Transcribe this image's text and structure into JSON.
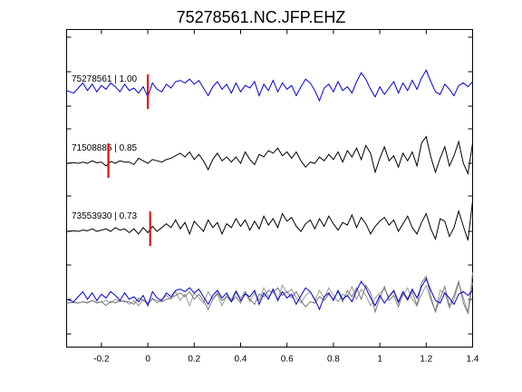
{
  "chart_data": {
    "type": "line",
    "title": "75278561.NC.JFP.EHZ",
    "xlabel": "",
    "ylabel": "",
    "xlim": [
      -0.35,
      1.4
    ],
    "x_ticks": [
      -0.2,
      0,
      0.2,
      0.4,
      0.6,
      0.8,
      1,
      1.2,
      1.4
    ],
    "x_tick_labels": [
      "-0.2",
      "0",
      "0.2",
      "0.4",
      "0.6",
      "0.8",
      "1",
      "1.2",
      "1.4"
    ],
    "grid": false,
    "legend": "none",
    "pick_color": "#e00000",
    "traces": [
      {
        "label": "75278561 | 1.00",
        "color": "#0000cc",
        "pick_time": 0.0,
        "x": [
          -0.35,
          -0.32,
          -0.3,
          -0.28,
          -0.26,
          -0.24,
          -0.22,
          -0.2,
          -0.18,
          -0.16,
          -0.14,
          -0.12,
          -0.1,
          -0.08,
          -0.06,
          -0.04,
          -0.02,
          0.0,
          0.02,
          0.04,
          0.06,
          0.08,
          0.1,
          0.12,
          0.14,
          0.16,
          0.18,
          0.2,
          0.22,
          0.24,
          0.26,
          0.28,
          0.3,
          0.32,
          0.34,
          0.36,
          0.38,
          0.4,
          0.42,
          0.44,
          0.46,
          0.48,
          0.5,
          0.52,
          0.54,
          0.56,
          0.58,
          0.6,
          0.62,
          0.64,
          0.66,
          0.68,
          0.7,
          0.72,
          0.74,
          0.76,
          0.78,
          0.8,
          0.82,
          0.84,
          0.86,
          0.88,
          0.9,
          0.92,
          0.94,
          0.96,
          0.98,
          1.0,
          1.02,
          1.04,
          1.06,
          1.08,
          1.1,
          1.12,
          1.14,
          1.16,
          1.18,
          1.2,
          1.22,
          1.24,
          1.26,
          1.28,
          1.3,
          1.32,
          1.34,
          1.36,
          1.38,
          1.4
        ],
        "y": [
          0.3,
          0.1,
          0.5,
          0.9,
          0.3,
          0.8,
          0.2,
          0.7,
          0.4,
          0.9,
          0.6,
          0.2,
          0.8,
          0.3,
          0.5,
          0.1,
          0.6,
          -0.2,
          0.9,
          0.4,
          0.2,
          0.8,
          0.5,
          1.0,
          1.1,
          0.9,
          1.2,
          0.8,
          1.1,
          0.5,
          -0.1,
          0.6,
          1.0,
          0.4,
          0.8,
          0.1,
          0.9,
          0.2,
          0.7,
          0.5,
          1.0,
          -0.1,
          0.8,
          0.3,
          1.1,
          0.2,
          0.9,
          0.4,
          0.7,
          -0.1,
          0.6,
          1.2,
          0.9,
          0.3,
          -0.5,
          0.5,
          0.8,
          0.2,
          1.0,
          0.3,
          0.6,
          0.1,
          1.0,
          1.7,
          1.2,
          0.4,
          -0.2,
          0.6,
          0.0,
          0.5,
          1.0,
          0.1,
          0.9,
          0.3,
          1.1,
          0.4,
          1.3,
          1.9,
          1.0,
          0.2,
          0.0,
          0.8,
          0.4,
          -0.1,
          0.7,
          0.9,
          0.6,
          1.0
        ]
      },
      {
        "label": "71508885 | 0.85",
        "color": "#000000",
        "pick_time": -0.17,
        "x": [
          -0.35,
          -0.32,
          -0.3,
          -0.28,
          -0.26,
          -0.24,
          -0.22,
          -0.2,
          -0.18,
          -0.16,
          -0.14,
          -0.12,
          -0.1,
          -0.08,
          -0.06,
          -0.04,
          -0.02,
          0.0,
          0.02,
          0.04,
          0.06,
          0.08,
          0.1,
          0.12,
          0.14,
          0.16,
          0.18,
          0.2,
          0.22,
          0.24,
          0.26,
          0.28,
          0.3,
          0.32,
          0.34,
          0.36,
          0.38,
          0.4,
          0.42,
          0.44,
          0.46,
          0.48,
          0.5,
          0.52,
          0.54,
          0.56,
          0.58,
          0.6,
          0.62,
          0.64,
          0.66,
          0.68,
          0.7,
          0.72,
          0.74,
          0.76,
          0.78,
          0.8,
          0.82,
          0.84,
          0.86,
          0.88,
          0.9,
          0.92,
          0.94,
          0.96,
          0.98,
          1.0,
          1.02,
          1.04,
          1.06,
          1.08,
          1.1,
          1.12,
          1.14,
          1.16,
          1.18,
          1.2,
          1.22,
          1.24,
          1.26,
          1.28,
          1.3,
          1.32,
          1.34,
          1.36,
          1.38,
          1.4
        ],
        "y": [
          0.0,
          0.05,
          0.0,
          0.1,
          0.0,
          0.2,
          0.05,
          0.1,
          -0.2,
          0.15,
          0.0,
          0.2,
          0.1,
          0.1,
          -0.1,
          0.4,
          0.2,
          0.0,
          0.3,
          0.2,
          0.1,
          0.3,
          0.4,
          0.6,
          0.8,
          0.5,
          0.9,
          0.3,
          0.7,
          0.2,
          -0.5,
          0.3,
          0.8,
          0.2,
          0.5,
          0.1,
          0.5,
          0.0,
          0.9,
          0.3,
          -0.1,
          0.7,
          0.5,
          1.0,
          0.8,
          1.2,
          0.6,
          0.9,
          0.4,
          0.9,
          0.2,
          -0.3,
          0.1,
          0.0,
          0.5,
          0.2,
          0.7,
          0.3,
          0.9,
          0.1,
          1.0,
          0.5,
          1.2,
          0.3,
          1.4,
          0.8,
          -0.7,
          0.4,
          1.3,
          0.2,
          0.6,
          -0.3,
          0.8,
          0.2,
          0.9,
          -0.2,
          1.6,
          2.1,
          0.5,
          -0.7,
          0.4,
          1.3,
          -0.2,
          0.6,
          1.7,
          0.0,
          -0.8,
          1.6
        ]
      },
      {
        "label": "73553930 | 0.73",
        "color": "#000000",
        "pick_time": 0.01,
        "x": [
          -0.35,
          -0.32,
          -0.3,
          -0.28,
          -0.26,
          -0.24,
          -0.22,
          -0.2,
          -0.18,
          -0.16,
          -0.14,
          -0.12,
          -0.1,
          -0.08,
          -0.06,
          -0.04,
          -0.02,
          0.0,
          0.02,
          0.04,
          0.06,
          0.08,
          0.1,
          0.12,
          0.14,
          0.16,
          0.18,
          0.2,
          0.22,
          0.24,
          0.26,
          0.28,
          0.3,
          0.32,
          0.34,
          0.36,
          0.38,
          0.4,
          0.42,
          0.44,
          0.46,
          0.48,
          0.5,
          0.52,
          0.54,
          0.56,
          0.58,
          0.6,
          0.62,
          0.64,
          0.66,
          0.68,
          0.7,
          0.72,
          0.74,
          0.76,
          0.78,
          0.8,
          0.82,
          0.84,
          0.86,
          0.88,
          0.9,
          0.92,
          0.94,
          0.96,
          0.98,
          1.0,
          1.02,
          1.04,
          1.06,
          1.08,
          1.1,
          1.12,
          1.14,
          1.16,
          1.18,
          1.2,
          1.22,
          1.24,
          1.26,
          1.28,
          1.3,
          1.32,
          1.34,
          1.36,
          1.38,
          1.4
        ],
        "y": [
          0.0,
          0.05,
          0.0,
          0.1,
          0.05,
          0.2,
          0.0,
          0.1,
          0.2,
          0.0,
          0.3,
          0.1,
          0.2,
          -0.1,
          0.2,
          -0.2,
          0.3,
          -0.1,
          0.4,
          0.0,
          0.3,
          0.6,
          0.3,
          0.9,
          0.2,
          0.7,
          -0.2,
          0.8,
          0.4,
          0.0,
          0.9,
          0.3,
          0.7,
          -0.2,
          0.6,
          0.3,
          1.0,
          0.4,
          0.9,
          0.1,
          0.8,
          0.2,
          1.2,
          0.5,
          1.0,
          0.3,
          1.4,
          0.8,
          1.1,
          0.4,
          0.0,
          0.6,
          0.9,
          0.2,
          1.0,
          0.4,
          1.2,
          0.6,
          0.1,
          0.7,
          0.5,
          1.3,
          0.3,
          1.1,
          0.6,
          -0.2,
          0.4,
          0.8,
          1.1,
          0.5,
          0.9,
          0.0,
          0.6,
          1.2,
          0.3,
          -0.2,
          0.7,
          1.4,
          0.2,
          -0.6,
          1.0,
          0.8,
          -0.4,
          0.3,
          1.6,
          0.4,
          -0.7,
          2.4
        ]
      }
    ]
  }
}
